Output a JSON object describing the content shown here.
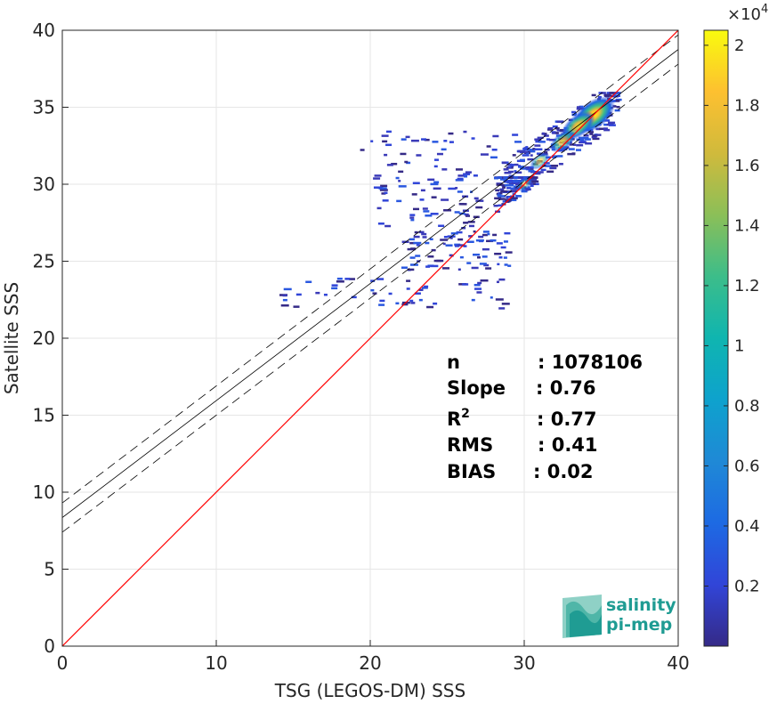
{
  "chart_data": {
    "type": "heatmap",
    "xlabel": "TSG (LEGOS-DM) SSS",
    "ylabel": "Satellite SSS",
    "xlim": [
      0,
      40
    ],
    "ylim": [
      0,
      40
    ],
    "xticks": [
      "0",
      "10",
      "20",
      "30",
      "40"
    ],
    "yticks": [
      "0",
      "5",
      "10",
      "15",
      "20",
      "25",
      "30",
      "35",
      "40"
    ],
    "grid": true,
    "colorbar": {
      "range": [
        0,
        2.05
      ],
      "multiplier": "×10",
      "exponent": "4",
      "ticks": [
        "0.2",
        "0.4",
        "0.6",
        "0.8",
        "1",
        "1.2",
        "1.4",
        "1.6",
        "1.8",
        "2"
      ],
      "colormap": "parula"
    },
    "lines": {
      "identity": {
        "slope": 1,
        "intercept": 0,
        "color": "#ff0000"
      },
      "fit": {
        "slope": 0.76,
        "intercept": 8.35,
        "color": "#000000"
      },
      "fit_upper": {
        "slope": 0.76,
        "intercept": 9.3,
        "style": "dashed"
      },
      "fit_lower": {
        "slope": 0.76,
        "intercept": 7.4,
        "style": "dashed"
      }
    },
    "stats": [
      {
        "label": "n",
        "sup": "",
        "value": ": 1078106"
      },
      {
        "label": "Slope",
        "sup": "",
        "value": ": 0.76"
      },
      {
        "label": "R",
        "sup": "2",
        "value": ": 0.77"
      },
      {
        "label": "RMS",
        "sup": "",
        "value": ": 0.41"
      },
      {
        "label": "BIAS",
        "sup": "",
        "value": ": 0.02"
      }
    ],
    "density_core": [
      {
        "x": 34.5,
        "y": 34.5,
        "level": 2.05
      },
      {
        "x": 33.5,
        "y": 33.8,
        "level": 1.4
      },
      {
        "x": 32.5,
        "y": 32.8,
        "level": 0.9
      },
      {
        "x": 31,
        "y": 31.5,
        "level": 0.5
      },
      {
        "x": 30,
        "y": 30,
        "level": 0.3
      }
    ],
    "scatter_groups": [
      {
        "x": [
          28.5,
          36
        ],
        "y": [
          28,
          36
        ],
        "density": 1.0
      },
      {
        "x": [
          28,
          30.5
        ],
        "y": [
          26,
          30.5
        ],
        "density": 0.6
      },
      {
        "x": [
          22,
          29
        ],
        "y": [
          24.5,
          27
        ],
        "density": 0.3
      },
      {
        "x": [
          20,
          27
        ],
        "y": [
          27,
          31
        ],
        "density": 0.25
      },
      {
        "x": [
          14,
          29
        ],
        "y": [
          22,
          24
        ],
        "density": 0.2
      },
      {
        "x": [
          19,
          30
        ],
        "y": [
          31,
          33.5
        ],
        "density": 0.15
      }
    ]
  },
  "logo": {
    "line1": "salinity",
    "line2": "pi-mep",
    "color": "#1f9c93"
  }
}
